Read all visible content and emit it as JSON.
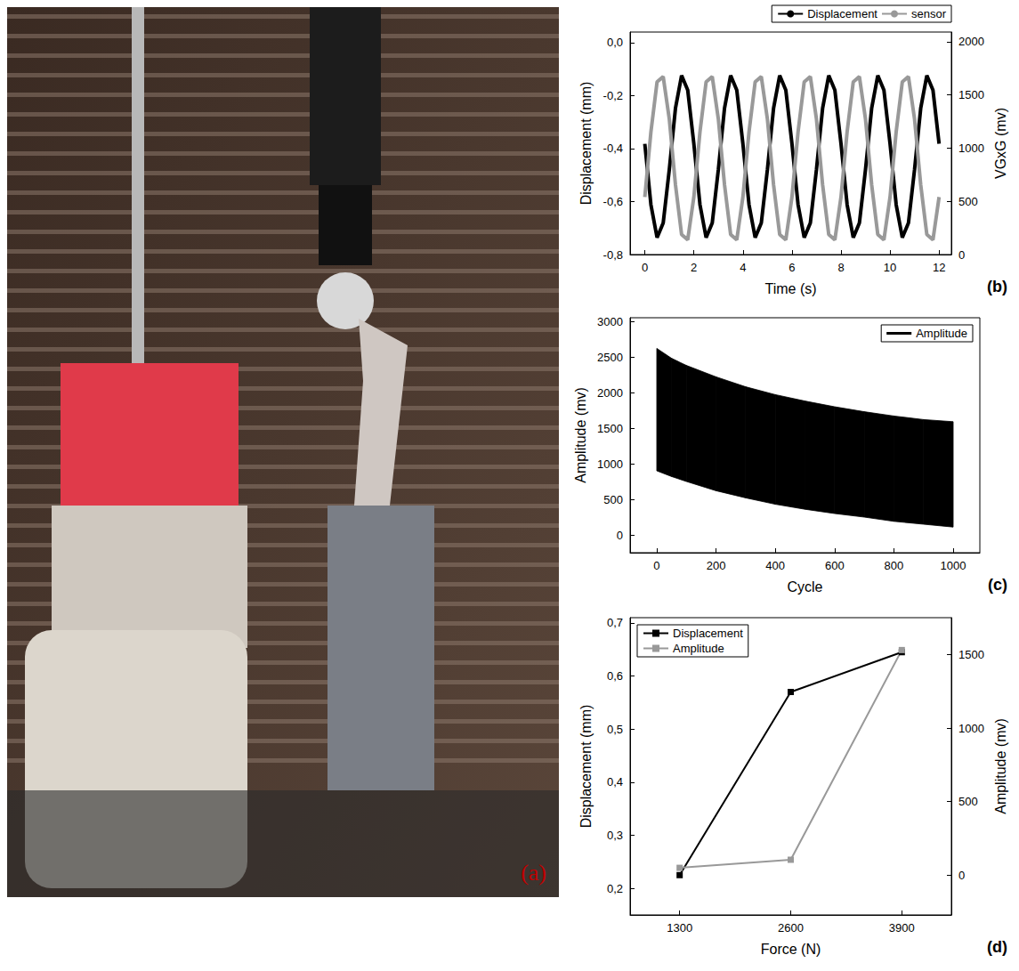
{
  "photo": {
    "label": "(a)"
  },
  "chart_data": [
    {
      "type": "line",
      "label": "(b)",
      "xlabel": "Time (s)",
      "ylabel": "Displacement (mm)",
      "y2label": "VGxG (mv)",
      "x": [
        0,
        0.25,
        0.5,
        0.75,
        1,
        1.25,
        1.5,
        1.75,
        2,
        2.25,
        2.5,
        2.75,
        3,
        3.25,
        3.5,
        3.75,
        4,
        4.25,
        4.5,
        4.75,
        5,
        5.25,
        5.5,
        5.75,
        6,
        6.25,
        6.5,
        6.75,
        7,
        7.25,
        7.5,
        7.75,
        8,
        8.25,
        8.5,
        8.75,
        9,
        9.25,
        9.5,
        9.75,
        10,
        10.25,
        10.5,
        10.75,
        11,
        11.25,
        11.5,
        11.75,
        12
      ],
      "xlim": [
        -0.6,
        12.5
      ],
      "xticks": [
        0,
        2,
        4,
        6,
        8,
        10,
        12
      ],
      "ylim": [
        -0.8,
        0.04
      ],
      "yticks": [
        {
          "value": -0.8,
          "label": "-0,8"
        },
        {
          "value": -0.6,
          "label": "-0,6"
        },
        {
          "value": -0.4,
          "label": "-0,4"
        },
        {
          "value": -0.2,
          "label": "-0,2"
        },
        {
          "value": 0,
          "label": "0,0"
        }
      ],
      "y2lim": [
        0,
        2090
      ],
      "y2ticks": [
        0,
        500,
        1000,
        1500,
        2000
      ],
      "grid": false,
      "legend": "top right",
      "series": [
        {
          "name": "Displacement",
          "color": "#000000",
          "values": [
            -0.382,
            -0.612,
            -0.736,
            -0.681,
            -0.478,
            -0.248,
            -0.124,
            -0.179,
            -0.382,
            -0.612,
            -0.736,
            -0.681,
            -0.478,
            -0.248,
            -0.124,
            -0.179,
            -0.382,
            -0.612,
            -0.736,
            -0.681,
            -0.478,
            -0.248,
            -0.124,
            -0.179,
            -0.382,
            -0.612,
            -0.736,
            -0.681,
            -0.478,
            -0.248,
            -0.124,
            -0.179,
            -0.382,
            -0.612,
            -0.736,
            -0.681,
            -0.478,
            -0.248,
            -0.124,
            -0.179,
            -0.382,
            -0.612,
            -0.736,
            -0.681,
            -0.478,
            -0.248,
            -0.124,
            -0.179,
            -0.382
          ]
        },
        {
          "name": "sensor",
          "color": "#999999",
          "axis": "y2",
          "values": [
            540,
            1154,
            1622,
            1671,
            1270,
            656,
            188,
            139,
            540,
            1154,
            1622,
            1671,
            1270,
            656,
            188,
            139,
            540,
            1154,
            1622,
            1671,
            1270,
            656,
            188,
            139,
            540,
            1154,
            1622,
            1671,
            1270,
            656,
            188,
            139,
            540,
            1154,
            1622,
            1671,
            1270,
            656,
            188,
            139,
            540,
            1154,
            1622,
            1671,
            1270,
            656,
            188,
            139,
            540
          ]
        }
      ]
    },
    {
      "type": "band",
      "label": "(c)",
      "xlabel": "Cycle",
      "ylabel": "Amplitude (mv)",
      "x": [
        0,
        50,
        100,
        200,
        300,
        400,
        500,
        600,
        700,
        800,
        900,
        1000
      ],
      "xlim": [
        -90,
        1090
      ],
      "xticks": [
        0,
        200,
        400,
        600,
        800,
        1000
      ],
      "ylim": [
        -250,
        3050
      ],
      "yticks": [
        0,
        500,
        1000,
        1500,
        2000,
        2500,
        3000
      ],
      "grid": false,
      "legend": "upper right",
      "series": [
        {
          "name": "Amplitude",
          "color": "#000000",
          "upper": [
            2620,
            2480,
            2380,
            2220,
            2080,
            1970,
            1880,
            1800,
            1730,
            1670,
            1620,
            1590
          ],
          "lower": [
            900,
            820,
            750,
            620,
            520,
            430,
            360,
            300,
            250,
            190,
            150,
            110
          ]
        }
      ]
    },
    {
      "type": "line",
      "label": "(d)",
      "xlabel": "Force (N)",
      "ylabel": "Displacement (mm)",
      "y2label": "Amplitude (mv)",
      "x": [
        1300,
        2600,
        3900
      ],
      "xlim": [
        720,
        4480
      ],
      "xticks": [
        1300,
        2600,
        3900
      ],
      "ylim": [
        0.15,
        0.71
      ],
      "yticks": [
        {
          "value": 0.2,
          "label": "0,2"
        },
        {
          "value": 0.3,
          "label": "0,3"
        },
        {
          "value": 0.4,
          "label": "0,4"
        },
        {
          "value": 0.5,
          "label": "0,5"
        },
        {
          "value": 0.6,
          "label": "0,6"
        },
        {
          "value": 0.7,
          "label": "0,7"
        }
      ],
      "y2lim": [
        -270,
        1750
      ],
      "y2ticks": [
        0,
        500,
        1000,
        1500
      ],
      "grid": false,
      "legend": "upper left",
      "marker": "square",
      "series": [
        {
          "name": "Displacement",
          "color": "#000000",
          "values": [
            0.225,
            0.57,
            0.645
          ]
        },
        {
          "name": "Amplitude",
          "color": "#999999",
          "axis": "y2",
          "values": [
            50,
            105,
            1530
          ]
        }
      ]
    }
  ]
}
